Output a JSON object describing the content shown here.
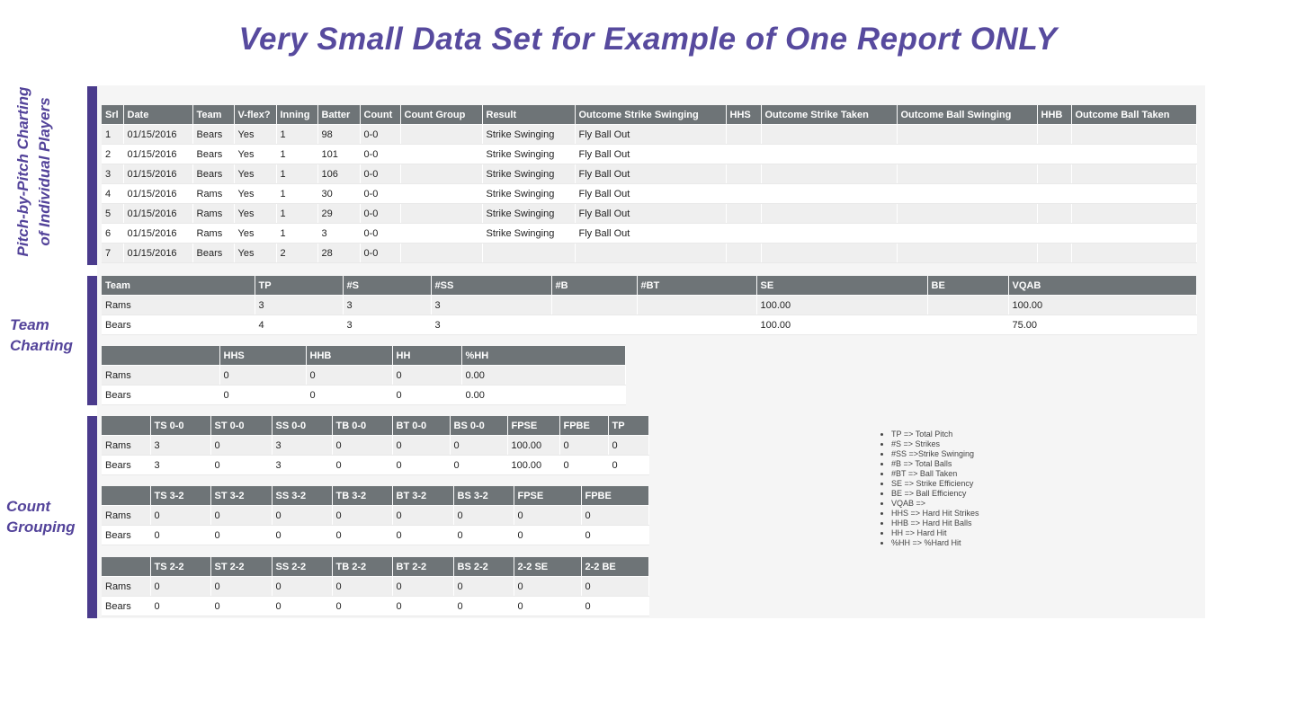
{
  "title": "Very Small Data Set for Example of One Report ONLY",
  "colors": {
    "title_purple": "#574a9e",
    "bar_purple": "#4a3b8c",
    "header_gray": "#6e7477",
    "row_stripe": "#efefef",
    "panel_bg": "#f5f5f5"
  },
  "sections": {
    "pitch_label": "Pitch-by-Pitch Charting\nof Individual Players",
    "team_label": "Team\nCharting",
    "count_label": "Count\nGrouping"
  },
  "tables": {
    "pitch_detail": {
      "headers": [
        "Srl",
        "Date",
        "Team",
        "V-flex?",
        "Inning",
        "Batter",
        "Count",
        "Count Group",
        "Result",
        "Outcome Strike Swinging",
        "HHS",
        "Outcome Strike Taken",
        "Outcome Ball Swinging",
        "HHB",
        "Outcome Ball Taken"
      ],
      "widths": [
        24,
        77,
        46,
        47,
        46,
        47,
        45,
        91,
        103,
        168,
        39,
        151,
        156,
        38,
        139
      ],
      "rows": [
        [
          "1",
          "01/15/2016",
          "Bears",
          "Yes",
          "1",
          "98",
          "0-0",
          "",
          "Strike Swinging",
          "Fly Ball Out",
          "",
          "",
          "",
          "",
          ""
        ],
        [
          "2",
          "01/15/2016",
          "Bears",
          "Yes",
          "1",
          "101",
          "0-0",
          "",
          "Strike Swinging",
          "Fly Ball Out",
          "",
          "",
          "",
          "",
          ""
        ],
        [
          "3",
          "01/15/2016",
          "Bears",
          "Yes",
          "1",
          "106",
          "0-0",
          "",
          "Strike Swinging",
          "Fly Ball Out",
          "",
          "",
          "",
          "",
          ""
        ],
        [
          "4",
          "01/15/2016",
          "Rams",
          "Yes",
          "1",
          "30",
          "0-0",
          "",
          "Strike Swinging",
          "Fly Ball Out",
          "",
          "",
          "",
          "",
          ""
        ],
        [
          "5",
          "01/15/2016",
          "Rams",
          "Yes",
          "1",
          "29",
          "0-0",
          "",
          "Strike Swinging",
          "Fly Ball Out",
          "",
          "",
          "",
          "",
          ""
        ],
        [
          "6",
          "01/15/2016",
          "Rams",
          "Yes",
          "1",
          "3",
          "0-0",
          "",
          "Strike Swinging",
          "Fly Ball Out",
          "",
          "",
          "",
          "",
          ""
        ],
        [
          "7",
          "01/15/2016",
          "Bears",
          "Yes",
          "2",
          "28",
          "0-0",
          "",
          "",
          "",
          "",
          "",
          "",
          "",
          ""
        ]
      ]
    },
    "team_summary": {
      "headers": [
        "Team",
        "TP",
        "#S",
        "#SS",
        "#B",
        "#BT",
        "SE",
        "BE",
        "VQAB"
      ],
      "widths": [
        170,
        98,
        98,
        134,
        95,
        133,
        190,
        90,
        209
      ],
      "rows": [
        [
          "Rams",
          "3",
          "3",
          "3",
          "",
          "",
          "100.00",
          "",
          "100.00"
        ],
        [
          "Bears",
          "4",
          "3",
          "3",
          "",
          "",
          "100.00",
          "",
          "75.00"
        ]
      ]
    },
    "hard_hit": {
      "headers": [
        "",
        "HHS",
        "HHB",
        "HH",
        "%HH"
      ],
      "widths": [
        131,
        96,
        96,
        77,
        182
      ],
      "rows": [
        [
          "Rams",
          "0",
          "0",
          "0",
          "0.00"
        ],
        [
          "Bears",
          "0",
          "0",
          "0",
          "0.00"
        ]
      ]
    },
    "count_00": {
      "headers": [
        "",
        "TS 0-0",
        "ST 0-0",
        "SS 0-0",
        "TB 0-0",
        "BT 0-0",
        "BS 0-0",
        "FPSE",
        "FPBE",
        "TP"
      ],
      "widths": [
        54,
        67,
        68,
        67,
        67,
        64,
        64,
        58,
        54,
        45
      ],
      "rows": [
        [
          "Rams",
          "3",
          "0",
          "3",
          "0",
          "0",
          "0",
          "100.00",
          "0",
          "0"
        ],
        [
          "Bears",
          "3",
          "0",
          "3",
          "0",
          "0",
          "0",
          "100.00",
          "0",
          "0"
        ]
      ]
    },
    "count_32": {
      "headers": [
        "",
        "TS 3-2",
        "ST 3-2",
        "SS 3-2",
        "TB 3-2",
        "BT 3-2",
        "BS 3-2",
        "FPSE",
        "FPBE"
      ],
      "widths": [
        54,
        67,
        68,
        67,
        67,
        68,
        67,
        75,
        75
      ],
      "rows": [
        [
          "Rams",
          "0",
          "0",
          "0",
          "0",
          "0",
          "0",
          "0",
          "0"
        ],
        [
          "Bears",
          "0",
          "0",
          "0",
          "0",
          "0",
          "0",
          "0",
          "0"
        ]
      ]
    },
    "count_22": {
      "headers": [
        "",
        "TS 2-2",
        "ST 2-2",
        "SS 2-2",
        "TB 2-2",
        "BT 2-2",
        "BS 2-2",
        "2-2 SE",
        "2-2 BE"
      ],
      "widths": [
        54,
        67,
        68,
        67,
        67,
        68,
        67,
        75,
        75
      ],
      "rows": [
        [
          "Rams",
          "0",
          "0",
          "0",
          "0",
          "0",
          "0",
          "0",
          "0"
        ],
        [
          "Bears",
          "0",
          "0",
          "0",
          "0",
          "0",
          "0",
          "0",
          "0"
        ]
      ]
    }
  },
  "legend": {
    "items": [
      "TP => Total Pitch",
      "#S => Strikes",
      "#SS =>Strike Swinging",
      "#B => Total Balls",
      "#BT => Ball Taken",
      "SE => Strike Efficiency",
      "BE => Ball Efficiency",
      "VQAB =>",
      "HHS => Hard Hit Strikes",
      "HHB => Hard Hit Balls",
      "HH => Hard Hit",
      "%HH => %Hard Hit"
    ]
  }
}
